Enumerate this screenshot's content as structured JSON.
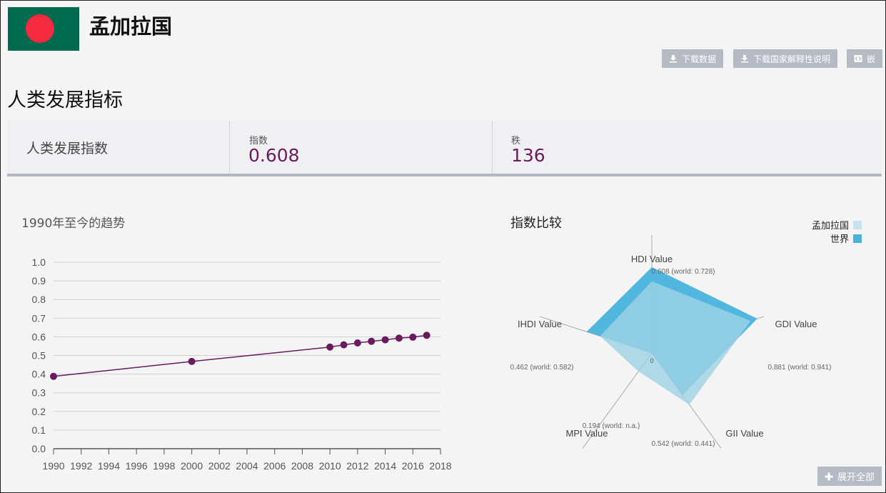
{
  "country": {
    "name": "孟加拉国"
  },
  "buttons": {
    "download_data": "下载数据",
    "download_notes": "下载国家解释性说明",
    "embed": "嵌",
    "expand_all": "展开全部"
  },
  "section": {
    "title": "人类发展指标"
  },
  "summary": {
    "indicator_name": "人类发展指数",
    "index_label": "指数",
    "index_value": "0.608",
    "rank_label": "秩",
    "rank_value": "136"
  },
  "trend": {
    "title": "1990年至今的趋势"
  },
  "comparison": {
    "title": "指数比较",
    "legend": [
      {
        "label": "孟加拉国",
        "color": "#c5e3ee"
      },
      {
        "label": "世界",
        "color": "#49b3dc"
      }
    ]
  },
  "colors": {
    "accent": "#6a1a5e",
    "button": "#b5bac4",
    "radar_country": "#9fd2e5",
    "radar_world": "#49b3dc"
  },
  "chart_data": [
    {
      "type": "line",
      "title": "1990年至今的趋势",
      "xlabel": "",
      "ylabel": "",
      "xlim": [
        1990,
        2018
      ],
      "ylim": [
        0,
        1.0
      ],
      "x_ticks": [
        1990,
        1992,
        1994,
        1996,
        1998,
        2000,
        2002,
        2004,
        2006,
        2008,
        2010,
        2012,
        2014,
        2016,
        2018
      ],
      "y_ticks": [
        "0.0",
        "0.1",
        "0.2",
        "0.3",
        "0.4",
        "0.5",
        "0.6",
        "0.7",
        "0.8",
        "0.9",
        "1.0"
      ],
      "grid": true,
      "series": [
        {
          "name": "孟加拉国",
          "color": "#6a1a5e",
          "x": [
            1990,
            2000,
            2010,
            2011,
            2012,
            2013,
            2014,
            2015,
            2016,
            2017
          ],
          "y": [
            0.388,
            0.468,
            0.545,
            0.557,
            0.567,
            0.576,
            0.584,
            0.593,
            0.598,
            0.608
          ]
        }
      ]
    },
    {
      "type": "radar",
      "title": "指数比较",
      "center_label": "0",
      "axes": [
        {
          "name": "HDI Value",
          "label": "0.608 (world: 0.728)",
          "country": 0.608,
          "world": 0.728
        },
        {
          "name": "GDI Value",
          "label": "0.881 (world: 0.941)",
          "country": 0.881,
          "world": 0.941
        },
        {
          "name": "GII Value",
          "label": "0.542 (world: 0.441)",
          "country": 0.542,
          "world": 0.441
        },
        {
          "name": "MPI Value",
          "label": "0.194 (world: n.a.)",
          "country": 0.194,
          "world": null
        },
        {
          "name": "IHDI Value",
          "label": "0.462 (world: 0.582)",
          "country": 0.462,
          "world": 0.582
        }
      ]
    }
  ]
}
